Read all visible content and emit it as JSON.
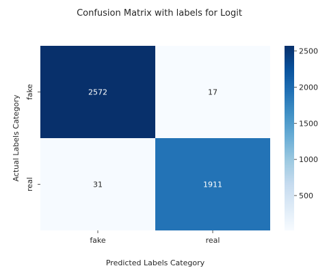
{
  "chart_data": {
    "type": "heatmap",
    "title": "Confusion Matrix with labels for Logit",
    "xlabel": "Predicted Labels Category",
    "ylabel": "Actual Labels Category",
    "x_categories": [
      "fake",
      "real"
    ],
    "y_categories": [
      "fake",
      "real"
    ],
    "values": [
      [
        2572,
        17
      ],
      [
        31,
        1911
      ]
    ],
    "cell_labels": [
      [
        "2572",
        "17"
      ],
      [
        "31",
        "1911"
      ]
    ],
    "colormap": "Blues",
    "color_range": [
      17,
      2572
    ],
    "colorbar_ticks": [
      500,
      1000,
      1500,
      2000,
      2500
    ],
    "colorbar_tick_labels": [
      "500",
      "1000",
      "1500",
      "2000",
      "2500"
    ],
    "colors": {
      "low": "#f7fbff",
      "high": "#08306b",
      "dark_text": "#262626",
      "light_text": "#ffffff"
    }
  }
}
